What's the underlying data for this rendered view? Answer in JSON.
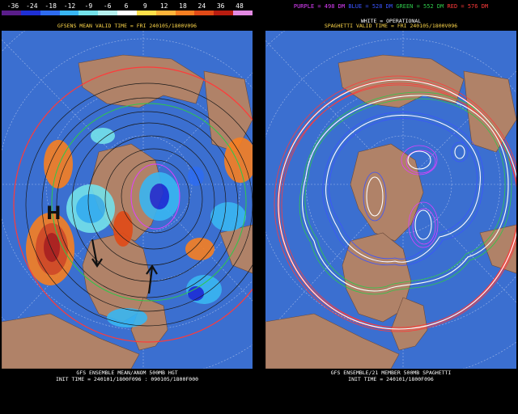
{
  "left": {
    "colorbar_labels": [
      "-36",
      "-24",
      "-18",
      "-12",
      "-9",
      "-6",
      "6",
      "9",
      "12",
      "18",
      "24",
      "36",
      "48"
    ],
    "colorbar_colors": [
      "#5a1d8a",
      "#1e2fd6",
      "#2e6cf0",
      "#39b6f2",
      "#74e2ea",
      "#b5f0ee",
      "#ffffff",
      "#ffe04a",
      "#ffb43a",
      "#f77f21",
      "#e14a17",
      "#b81c10",
      "#e38ae3"
    ],
    "title": "GFSENS MEAN VALID TIME = FRI 240105/1800V096",
    "footer_line1": "GFS ENSEMBLE MEAN/ANOM 500MB HGT",
    "footer_line2": "INIT TIME = 240101/1800F096 : 090105/1800F000",
    "marker_high": "H"
  },
  "right": {
    "legend": [
      {
        "text": "PURPLE = 498 DM",
        "color": "#e040ff"
      },
      {
        "text": "BLUE = 528 DM",
        "color": "#3a54ff"
      },
      {
        "text": "GREEN = 552 DM",
        "color": "#2fc84a"
      },
      {
        "text": "RED = 576 DM",
        "color": "#ff3a3a"
      }
    ],
    "subtitle": "WHITE = OPERATIONAL",
    "title": "SPAGHETTI VALID TIME = FRI 240105/1800V096",
    "footer_line1": "GFS ENSEMBLE/21 MEMBER 500MB SPAGHETTI",
    "footer_line2": "INIT TIME = 240101/1800F096"
  },
  "colors": {
    "ocean": "#3b6fd0",
    "land": "#b08268"
  }
}
